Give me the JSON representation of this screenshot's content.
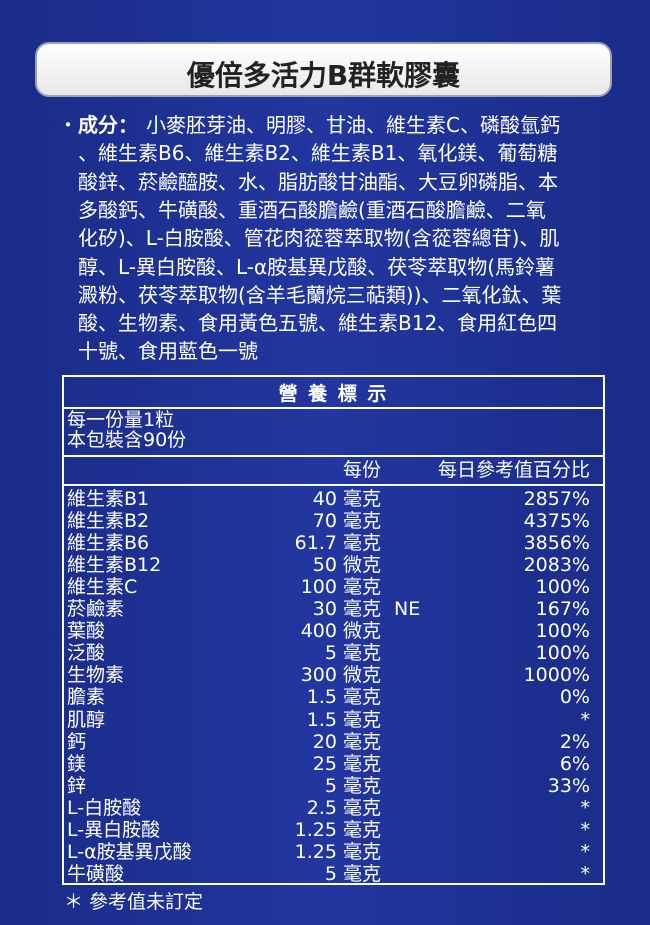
{
  "title": "優倍多活力B群軟膠囊",
  "ingredients": {
    "label": "成分：",
    "lines": [
      "小麥胚芽油、明膠、甘油、維生素C、磷酸氫鈣",
      "、維生素B6、維生素B2、維生素B1、氧化鎂、葡萄糖",
      "酸鋅、菸鹼醯胺、水、脂肪酸甘油酯、大豆卵磷脂、本",
      "多酸鈣、牛磺酸、重酒石酸膽鹼(重酒石酸膽鹼、二氧",
      "化矽)、L-白胺酸、管花肉蓯蓉萃取物(含蓯蓉總苷)、肌",
      "醇、L-異白胺酸、L-α胺基異戊酸、茯苓萃取物(馬鈴薯",
      "澱粉、茯苓萃取物(含羊毛蘭烷三萜類))、二氧化鈦、葉",
      "酸、生物素、食用黃色五號、維生素B12、食用紅色四",
      "十號、食用藍色一號"
    ]
  },
  "nutrition": {
    "title": "營 養 標 示",
    "serving_size": "每一份量1粒",
    "servings_per_pack": "本包裝含90份",
    "columns": [
      "每份",
      "每日參考值百分比"
    ],
    "rows": [
      {
        "name": "維生素B1",
        "amount": "40 毫克",
        "percent": "2857%"
      },
      {
        "name": "維生素B2",
        "amount": "70 毫克",
        "percent": "4375%"
      },
      {
        "name": "維生素B6",
        "amount": "61.7 毫克",
        "percent": "3856%"
      },
      {
        "name": "維生素B12",
        "amount": "50 微克",
        "percent": "2083%"
      },
      {
        "name": "維生素C",
        "amount": "100 毫克",
        "percent": "100%"
      },
      {
        "name": "菸鹼素",
        "amount": "30 毫克",
        "note": "NE",
        "percent": "167%"
      },
      {
        "name": "葉酸",
        "amount": "400 微克",
        "percent": "100%"
      },
      {
        "name": "泛酸",
        "amount": "5 毫克",
        "percent": "100%"
      },
      {
        "name": "生物素",
        "amount": "300 微克",
        "percent": "1000%"
      },
      {
        "name": "膽素",
        "amount": "1.5 毫克",
        "percent": "0%"
      },
      {
        "name": "肌醇",
        "amount": "1.5 毫克",
        "percent": "*"
      },
      {
        "name": "鈣",
        "amount": "20 毫克",
        "percent": "2%"
      },
      {
        "name": "鎂",
        "amount": "25 毫克",
        "percent": "6%"
      },
      {
        "name": "鋅",
        "amount": "5 毫克",
        "percent": "33%"
      },
      {
        "name": "L-白胺酸",
        "amount": "2.5 毫克",
        "percent": "*"
      },
      {
        "name": "L-異白胺酸",
        "amount": "1.25 毫克",
        "percent": "*"
      },
      {
        "name": "L-α胺基異戊酸",
        "amount": "1.25 毫克",
        "percent": "*"
      },
      {
        "name": "牛磺酸",
        "amount": "5 毫克",
        "percent": "*"
      }
    ]
  },
  "footnote": "＊ 參考值未訂定"
}
